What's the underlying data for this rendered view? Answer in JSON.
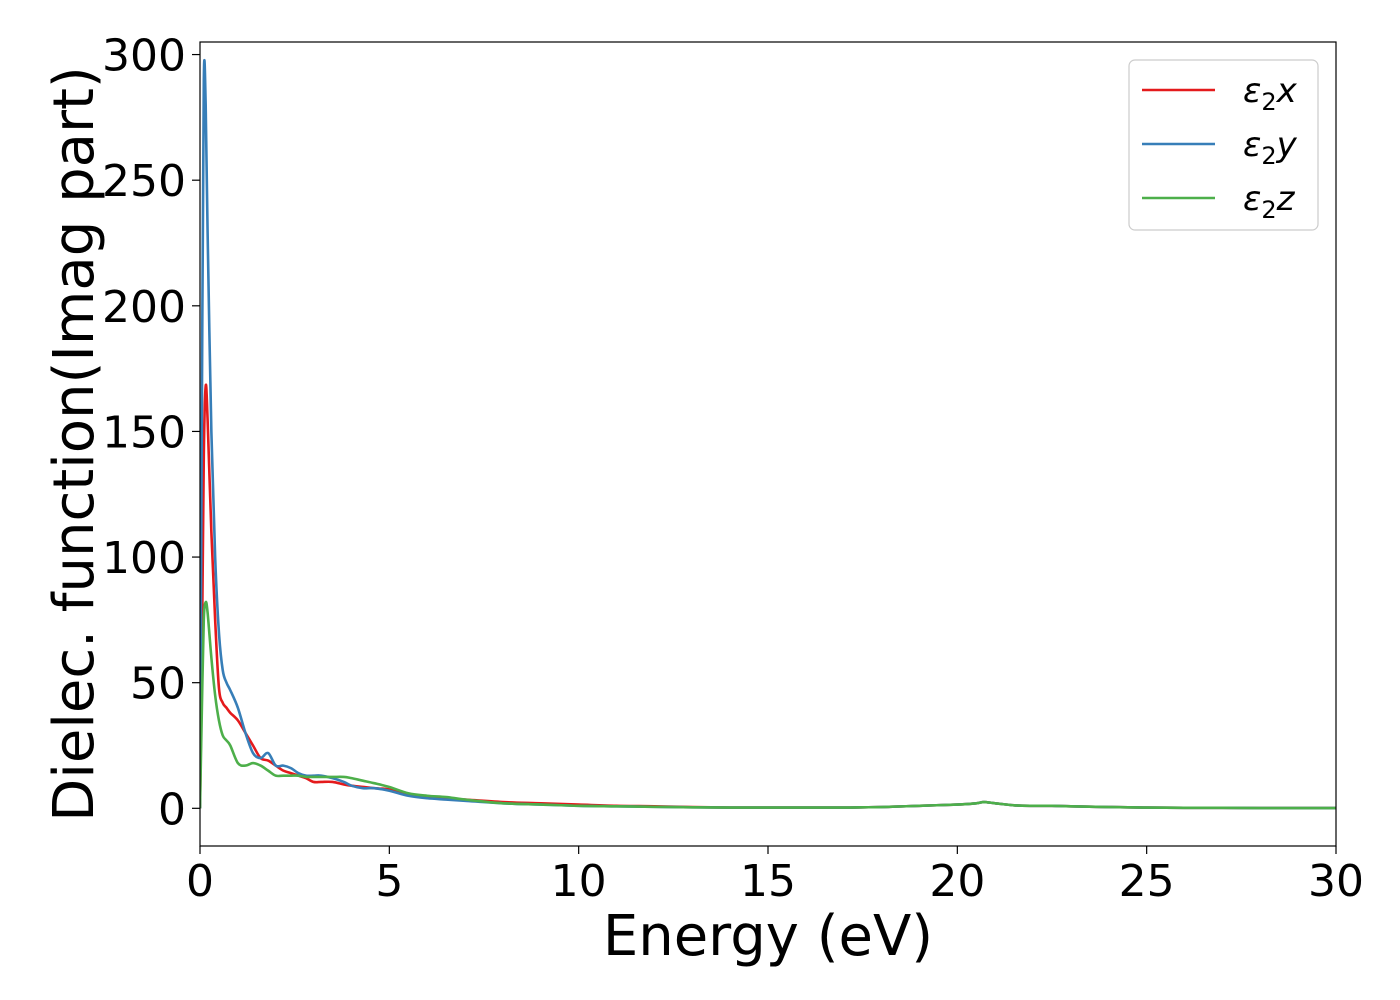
{
  "chart_data": {
    "type": "line",
    "title": "",
    "xlabel": "Energy (eV)",
    "ylabel": "Dielec. function(Imag part)",
    "xlim": [
      0,
      30
    ],
    "ylim": [
      -15,
      305
    ],
    "xticks": [
      0,
      5,
      10,
      15,
      20,
      25,
      30
    ],
    "yticks": [
      0,
      50,
      100,
      150,
      200,
      250,
      300
    ],
    "grid": false,
    "legend_position": "top-right",
    "series": [
      {
        "name": "ε2x",
        "legend": {
          "base": "ε",
          "sub": "2",
          "suffix": "x"
        },
        "color": "#e41a1c",
        "x": [
          0,
          0.05,
          0.1,
          0.15,
          0.2,
          0.3,
          0.4,
          0.5,
          0.6,
          0.7,
          0.8,
          1.0,
          1.2,
          1.4,
          1.6,
          1.8,
          2.0,
          2.2,
          2.4,
          2.6,
          2.8,
          3.0,
          3.2,
          3.5,
          3.8,
          4.0,
          4.3,
          4.6,
          5.0,
          5.5,
          6.0,
          6.5,
          7.0,
          8.0,
          9.0,
          10.0,
          11.0,
          12.0,
          13.0,
          14.0,
          15.0,
          16.0,
          17.0,
          17.5,
          18.0,
          19.0,
          20.0,
          20.5,
          20.7,
          21.0,
          21.5,
          22.0,
          22.5,
          23.0,
          24.0,
          25.0,
          26.0,
          27.0,
          28.0,
          29.0,
          30.0
        ],
        "y": [
          0,
          60,
          140,
          168,
          155,
          110,
          75,
          48,
          42,
          40,
          38,
          35,
          30,
          25,
          20,
          19,
          17,
          15,
          14,
          13,
          12,
          10.5,
          10.5,
          10.5,
          9.5,
          9,
          8.5,
          8,
          7.5,
          5.5,
          4.5,
          4,
          3.5,
          2.5,
          2,
          1.5,
          1,
          0.8,
          0.5,
          0.3,
          0.3,
          0.3,
          0.3,
          0.4,
          0.5,
          1,
          1.5,
          2,
          2.5,
          2,
          1.2,
          1,
          1,
          0.8,
          0.5,
          0.3,
          0.2,
          0.2,
          0.1,
          0.1,
          0.1
        ]
      },
      {
        "name": "ε2y",
        "legend": {
          "base": "ε",
          "sub": "2",
          "suffix": "y"
        },
        "color": "#377eb8",
        "x": [
          0,
          0.05,
          0.1,
          0.15,
          0.2,
          0.3,
          0.4,
          0.5,
          0.6,
          0.7,
          0.8,
          1.0,
          1.2,
          1.4,
          1.6,
          1.8,
          2.0,
          2.2,
          2.4,
          2.6,
          2.8,
          3.0,
          3.2,
          3.5,
          3.8,
          4.0,
          4.3,
          4.6,
          5.0,
          5.5,
          6.0,
          6.5,
          7.0,
          8.0,
          9.0,
          10.0,
          11.0,
          12.0,
          13.0,
          14.0,
          15.0,
          16.0,
          17.0,
          17.5,
          18.0,
          19.0,
          20.0,
          20.5,
          20.7,
          21.0,
          21.5,
          22.0,
          22.5,
          23.0,
          24.0,
          25.0,
          26.0,
          27.0,
          28.0,
          29.0,
          30.0
        ],
        "y": [
          0,
          160,
          289,
          280,
          230,
          150,
          100,
          70,
          55,
          50,
          47,
          40,
          30,
          22,
          20,
          22,
          17,
          17,
          16,
          14,
          13,
          13,
          13,
          12,
          10.5,
          9,
          8,
          8,
          7,
          5,
          4,
          3.5,
          3,
          2,
          1.5,
          1,
          0.8,
          0.6,
          0.4,
          0.3,
          0.3,
          0.3,
          0.3,
          0.4,
          0.5,
          1,
          1.5,
          2,
          2.5,
          2,
          1.2,
          1,
          1,
          0.8,
          0.5,
          0.3,
          0.2,
          0.2,
          0.1,
          0.1,
          0.1
        ]
      },
      {
        "name": "ε2z",
        "legend": {
          "base": "ε",
          "sub": "2",
          "suffix": "z"
        },
        "color": "#4daf4a",
        "x": [
          0,
          0.05,
          0.1,
          0.15,
          0.2,
          0.3,
          0.4,
          0.5,
          0.6,
          0.7,
          0.8,
          1.0,
          1.2,
          1.4,
          1.6,
          1.8,
          2.0,
          2.2,
          2.4,
          2.6,
          2.8,
          3.0,
          3.2,
          3.5,
          3.8,
          4.0,
          4.3,
          4.6,
          5.0,
          5.5,
          6.0,
          6.5,
          7.0,
          8.0,
          9.0,
          10.0,
          11.0,
          12.0,
          13.0,
          14.0,
          15.0,
          16.0,
          17.0,
          17.5,
          18.0,
          19.0,
          20.0,
          20.5,
          20.7,
          21.0,
          21.5,
          22.0,
          22.5,
          23.0,
          24.0,
          25.0,
          26.0,
          27.0,
          28.0,
          29.0,
          30.0
        ],
        "y": [
          0,
          40,
          75,
          82,
          78,
          60,
          45,
          35,
          29,
          27,
          25,
          18,
          17,
          18,
          17,
          15,
          13,
          13,
          13,
          13,
          12.5,
          12.5,
          12.5,
          12.5,
          12.5,
          12,
          11,
          10,
          8.5,
          6,
          5,
          4.5,
          3.5,
          2,
          1.5,
          1,
          0.8,
          0.6,
          0.4,
          0.3,
          0.3,
          0.3,
          0.3,
          0.4,
          0.5,
          1,
          1.5,
          2,
          2.5,
          2,
          1.2,
          1,
          1,
          0.8,
          0.5,
          0.3,
          0.2,
          0.2,
          0.1,
          0.1,
          0.1
        ]
      }
    ]
  }
}
